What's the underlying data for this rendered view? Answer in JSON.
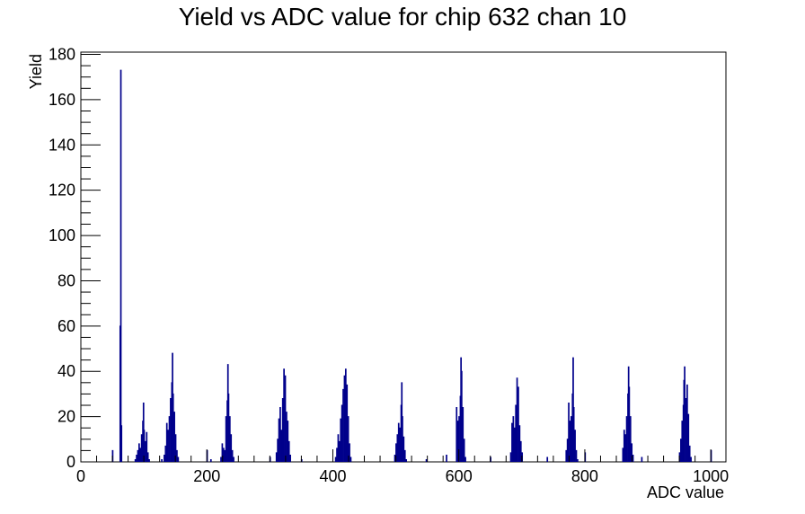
{
  "chart_data": {
    "type": "bar",
    "title": "Yield vs ADC value for chip 632 chan 10",
    "xlabel": "ADC value",
    "ylabel": "Yield",
    "xlim": [
      0,
      1024
    ],
    "ylim": [
      0,
      181
    ],
    "x_ticks": [
      0,
      200,
      400,
      600,
      800,
      1000
    ],
    "y_ticks": [
      0,
      20,
      40,
      60,
      80,
      100,
      120,
      140,
      160,
      180
    ],
    "grid": false,
    "line_color": "#00008b",
    "series": [
      {
        "bins": [
          [
            50,
            5
          ],
          [
            62,
            60
          ],
          [
            63,
            173
          ],
          [
            64,
            16
          ],
          [
            86,
            1
          ],
          [
            88,
            3
          ],
          [
            90,
            5
          ],
          [
            92,
            8
          ],
          [
            94,
            6
          ],
          [
            96,
            12
          ],
          [
            98,
            18
          ],
          [
            99,
            26
          ],
          [
            100,
            14
          ],
          [
            102,
            9
          ],
          [
            104,
            13
          ],
          [
            106,
            4
          ],
          [
            108,
            1
          ],
          [
            128,
            1
          ],
          [
            132,
            3
          ],
          [
            134,
            7
          ],
          [
            136,
            17
          ],
          [
            138,
            14
          ],
          [
            140,
            20
          ],
          [
            142,
            28
          ],
          [
            144,
            35
          ],
          [
            145,
            48
          ],
          [
            146,
            30
          ],
          [
            148,
            22
          ],
          [
            150,
            12
          ],
          [
            152,
            5
          ],
          [
            154,
            2
          ],
          [
            200,
            5
          ],
          [
            206,
            1
          ],
          [
            222,
            2
          ],
          [
            224,
            8
          ],
          [
            226,
            6
          ],
          [
            228,
            5
          ],
          [
            230,
            20
          ],
          [
            232,
            27
          ],
          [
            233,
            43
          ],
          [
            234,
            30
          ],
          [
            236,
            20
          ],
          [
            238,
            12
          ],
          [
            240,
            5
          ],
          [
            242,
            2
          ],
          [
            300,
            2
          ],
          [
            310,
            4
          ],
          [
            312,
            10
          ],
          [
            314,
            19
          ],
          [
            316,
            24
          ],
          [
            318,
            14
          ],
          [
            320,
            28
          ],
          [
            322,
            41
          ],
          [
            324,
            38
          ],
          [
            326,
            22
          ],
          [
            328,
            18
          ],
          [
            330,
            9
          ],
          [
            332,
            3
          ],
          [
            350,
            1
          ],
          [
            404,
            2
          ],
          [
            406,
            6
          ],
          [
            408,
            12
          ],
          [
            410,
            9
          ],
          [
            412,
            19
          ],
          [
            414,
            25
          ],
          [
            416,
            32
          ],
          [
            418,
            38
          ],
          [
            420,
            41
          ],
          [
            422,
            34
          ],
          [
            424,
            20
          ],
          [
            426,
            8
          ],
          [
            428,
            2
          ],
          [
            498,
            3
          ],
          [
            500,
            8
          ],
          [
            502,
            12
          ],
          [
            504,
            17
          ],
          [
            506,
            15
          ],
          [
            508,
            25
          ],
          [
            509,
            35
          ],
          [
            510,
            20
          ],
          [
            512,
            11
          ],
          [
            514,
            5
          ],
          [
            516,
            1
          ],
          [
            548,
            1
          ],
          [
            580,
            3
          ],
          [
            596,
            24
          ],
          [
            598,
            18
          ],
          [
            600,
            20
          ],
          [
            602,
            29
          ],
          [
            603,
            46
          ],
          [
            604,
            40
          ],
          [
            606,
            24
          ],
          [
            608,
            10
          ],
          [
            610,
            2
          ],
          [
            650,
            2
          ],
          [
            682,
            4
          ],
          [
            684,
            17
          ],
          [
            686,
            20
          ],
          [
            688,
            15
          ],
          [
            690,
            25
          ],
          [
            692,
            37
          ],
          [
            694,
            33
          ],
          [
            696,
            16
          ],
          [
            698,
            9
          ],
          [
            700,
            4
          ],
          [
            740,
            2
          ],
          [
            770,
            5
          ],
          [
            772,
            10
          ],
          [
            774,
            26
          ],
          [
            776,
            18
          ],
          [
            778,
            20
          ],
          [
            780,
            30
          ],
          [
            781,
            46
          ],
          [
            782,
            24
          ],
          [
            784,
            14
          ],
          [
            786,
            5
          ],
          [
            788,
            1
          ],
          [
            800,
            4
          ],
          [
            860,
            6
          ],
          [
            862,
            14
          ],
          [
            864,
            12
          ],
          [
            866,
            20
          ],
          [
            868,
            30
          ],
          [
            869,
            42
          ],
          [
            870,
            33
          ],
          [
            872,
            20
          ],
          [
            874,
            8
          ],
          [
            876,
            3
          ],
          [
            890,
            2
          ],
          [
            950,
            4
          ],
          [
            952,
            10
          ],
          [
            954,
            18
          ],
          [
            956,
            25
          ],
          [
            957,
            36
          ],
          [
            958,
            42
          ],
          [
            960,
            28
          ],
          [
            962,
            34
          ],
          [
            964,
            21
          ],
          [
            966,
            7
          ],
          [
            968,
            2
          ],
          [
            1000,
            5
          ]
        ]
      }
    ]
  }
}
